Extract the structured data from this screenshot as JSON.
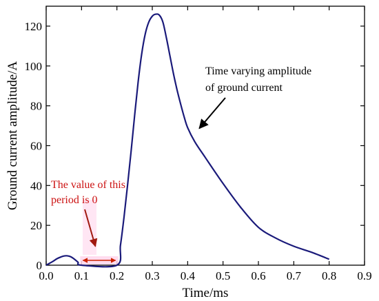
{
  "chart_data": {
    "type": "line",
    "xlabel": "Time/ms",
    "ylabel": "Ground current amplitude/A",
    "xlim": [
      0.0,
      0.9
    ],
    "ylim": [
      0,
      130
    ],
    "xticks": [
      0.0,
      0.1,
      0.2,
      0.3,
      0.4,
      0.5,
      0.6,
      0.7,
      0.8,
      0.9
    ],
    "xtick_labels": [
      "0.0",
      "0.1",
      "0.2",
      "0.3",
      "0.4",
      "0.5",
      "0.6",
      "0.7",
      "0.8",
      "0.9"
    ],
    "yticks": [
      0,
      20,
      40,
      60,
      80,
      100,
      120
    ],
    "ytick_labels": [
      "0",
      "20",
      "40",
      "60",
      "80",
      "100",
      "120"
    ],
    "grid": false,
    "series": [
      {
        "color": "#1a1a7a",
        "x": [
          0.0,
          0.01,
          0.02,
          0.03,
          0.04,
          0.05,
          0.06,
          0.07,
          0.08,
          0.09,
          0.1,
          0.2,
          0.21,
          0.22,
          0.23,
          0.24,
          0.25,
          0.26,
          0.27,
          0.28,
          0.29,
          0.3,
          0.31,
          0.32,
          0.33,
          0.34,
          0.35,
          0.36,
          0.37,
          0.38,
          0.39,
          0.4,
          0.42,
          0.45,
          0.5,
          0.55,
          0.6,
          0.65,
          0.7,
          0.75,
          0.8
        ],
        "y": [
          0.0,
          1.0,
          2.0,
          3.2,
          4.0,
          4.6,
          4.7,
          4.2,
          3.0,
          1.5,
          0.0,
          0.0,
          10.0,
          24.0,
          40.0,
          57.0,
          75.0,
          92.0,
          106.0,
          116.0,
          122.0,
          125.0,
          126.0,
          125.5,
          122.0,
          114.0,
          105.0,
          96.0,
          88.0,
          81.0,
          74.5,
          69.0,
          62.0,
          54.0,
          41.0,
          29.0,
          19.0,
          13.5,
          9.5,
          6.5,
          3.0
        ]
      }
    ],
    "annotations": [
      {
        "text_lines": [
          "Time varying amplitude",
          "of ground current"
        ],
        "color": "#000000",
        "arrow_to": [
          0.435,
          68
        ]
      },
      {
        "text_lines": [
          "The value of this",
          "period is 0"
        ],
        "color": "#cc1111",
        "arrow_to": [
          0.145,
          6
        ]
      }
    ],
    "zero_interval": {
      "x": [
        0.1,
        0.2
      ],
      "color": "#cc2200"
    }
  }
}
